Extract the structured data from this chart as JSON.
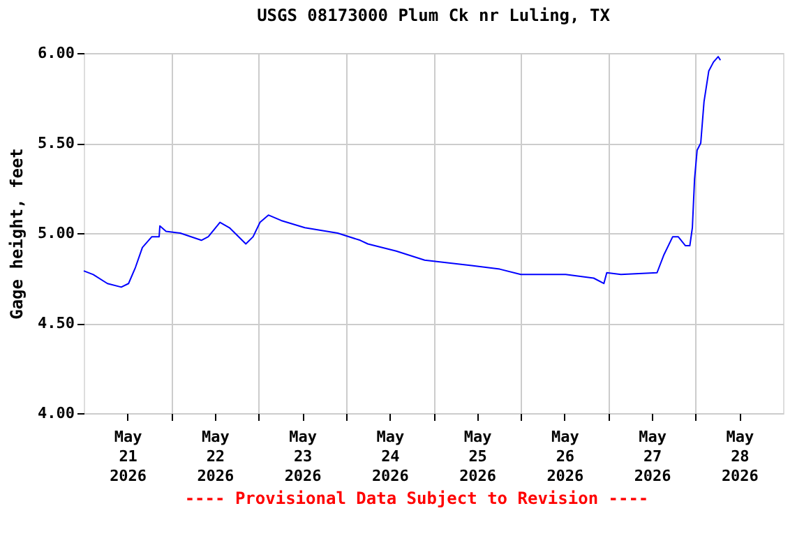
{
  "chart_data": {
    "type": "line",
    "title": "USGS 08173000 Plum Ck nr Luling, TX",
    "ylabel": "Gage height, feet",
    "annotations": [
      "---- Provisional Data Subject to Revision ----"
    ],
    "x": [
      "2026-05-21T00:00",
      "2026-05-21T02:36",
      "2026-05-21T06:30",
      "2026-05-21T10:18",
      "2026-05-21T12:18",
      "2026-05-21T14:12",
      "2026-05-21T16:06",
      "2026-05-21T18:42",
      "2026-05-21T20:42",
      "2026-05-21T20:54",
      "2026-05-21T22:36",
      "2026-05-22T02:30",
      "2026-05-22T08:18",
      "2026-05-22T10:12",
      "2026-05-22T13:24",
      "2026-05-22T16:00",
      "2026-05-22T20:30",
      "2026-05-22T22:30",
      "2026-05-23T00:24",
      "2026-05-23T02:42",
      "2026-05-23T06:12",
      "2026-05-23T12:42",
      "2026-05-23T21:42",
      "2026-05-24T03:54",
      "2026-05-24T06:00",
      "2026-05-24T13:48",
      "2026-05-24T21:36",
      "2026-05-25T10:30",
      "2026-05-25T18:12",
      "2026-05-26T00:00",
      "2026-05-26T12:18",
      "2026-05-26T20:00",
      "2026-05-26T22:48",
      "2026-05-26T23:36",
      "2026-05-27T03:30",
      "2026-05-27T13:24",
      "2026-05-27T15:18",
      "2026-05-27T17:42",
      "2026-05-27T19:12",
      "2026-05-27T21:12",
      "2026-05-27T22:24",
      "2026-05-27T23:06",
      "2026-05-27T23:42",
      "2026-05-28T00:24",
      "2026-05-28T01:24",
      "2026-05-28T02:18",
      "2026-05-28T03:36",
      "2026-05-28T04:54",
      "2026-05-28T06:12",
      "2026-05-28T06:48"
    ],
    "series": [
      {
        "color": "#0000ff",
        "values": [
          4.79,
          4.77,
          4.72,
          4.7,
          4.72,
          4.81,
          4.92,
          4.98,
          4.98,
          5.04,
          5.01,
          5.0,
          4.96,
          4.98,
          5.06,
          5.03,
          4.94,
          4.98,
          5.06,
          5.1,
          5.07,
          5.03,
          5.0,
          4.96,
          4.94,
          4.9,
          4.85,
          4.82,
          4.8,
          4.77,
          4.77,
          4.75,
          4.72,
          4.78,
          4.77,
          4.78,
          4.88,
          4.98,
          4.98,
          4.93,
          4.93,
          5.03,
          5.3,
          5.46,
          5.5,
          5.73,
          5.9,
          5.95,
          5.98,
          5.96
        ]
      }
    ],
    "xlim": [
      "2026-05-21T00:00",
      "2026-05-29T00:00"
    ],
    "xticks": [
      {
        "value": "2026-05-21T12:00",
        "label": "May 21 2026"
      },
      {
        "value": "2026-05-22T00:00",
        "label": null
      },
      {
        "value": "2026-05-22T12:00",
        "label": "May 22 2026"
      },
      {
        "value": "2026-05-23T00:00",
        "label": null
      },
      {
        "value": "2026-05-23T12:00",
        "label": "May 23 2026"
      },
      {
        "value": "2026-05-24T00:00",
        "label": null
      },
      {
        "value": "2026-05-24T12:00",
        "label": "May 24 2026"
      },
      {
        "value": "2026-05-25T00:00",
        "label": null
      },
      {
        "value": "2026-05-25T12:00",
        "label": "May 25 2026"
      },
      {
        "value": "2026-05-26T00:00",
        "label": null
      },
      {
        "value": "2026-05-26T12:00",
        "label": "May 26 2026"
      },
      {
        "value": "2026-05-27T00:00",
        "label": null
      },
      {
        "value": "2026-05-27T12:00",
        "label": "May 27 2026"
      },
      {
        "value": "2026-05-28T00:00",
        "label": null
      },
      {
        "value": "2026-05-28T12:00",
        "label": "May 28 2026"
      }
    ],
    "ylim": [
      4,
      6
    ],
    "yticks": [
      {
        "value": 4,
        "label": "4.00"
      },
      {
        "value": 4.5,
        "label": "4.50"
      },
      {
        "value": 5,
        "label": "5.00"
      },
      {
        "value": 5.5,
        "label": "5.50"
      },
      {
        "value": 6,
        "label": "6.00"
      }
    ],
    "grid": true,
    "marker": "none",
    "line_style": "solid"
  }
}
